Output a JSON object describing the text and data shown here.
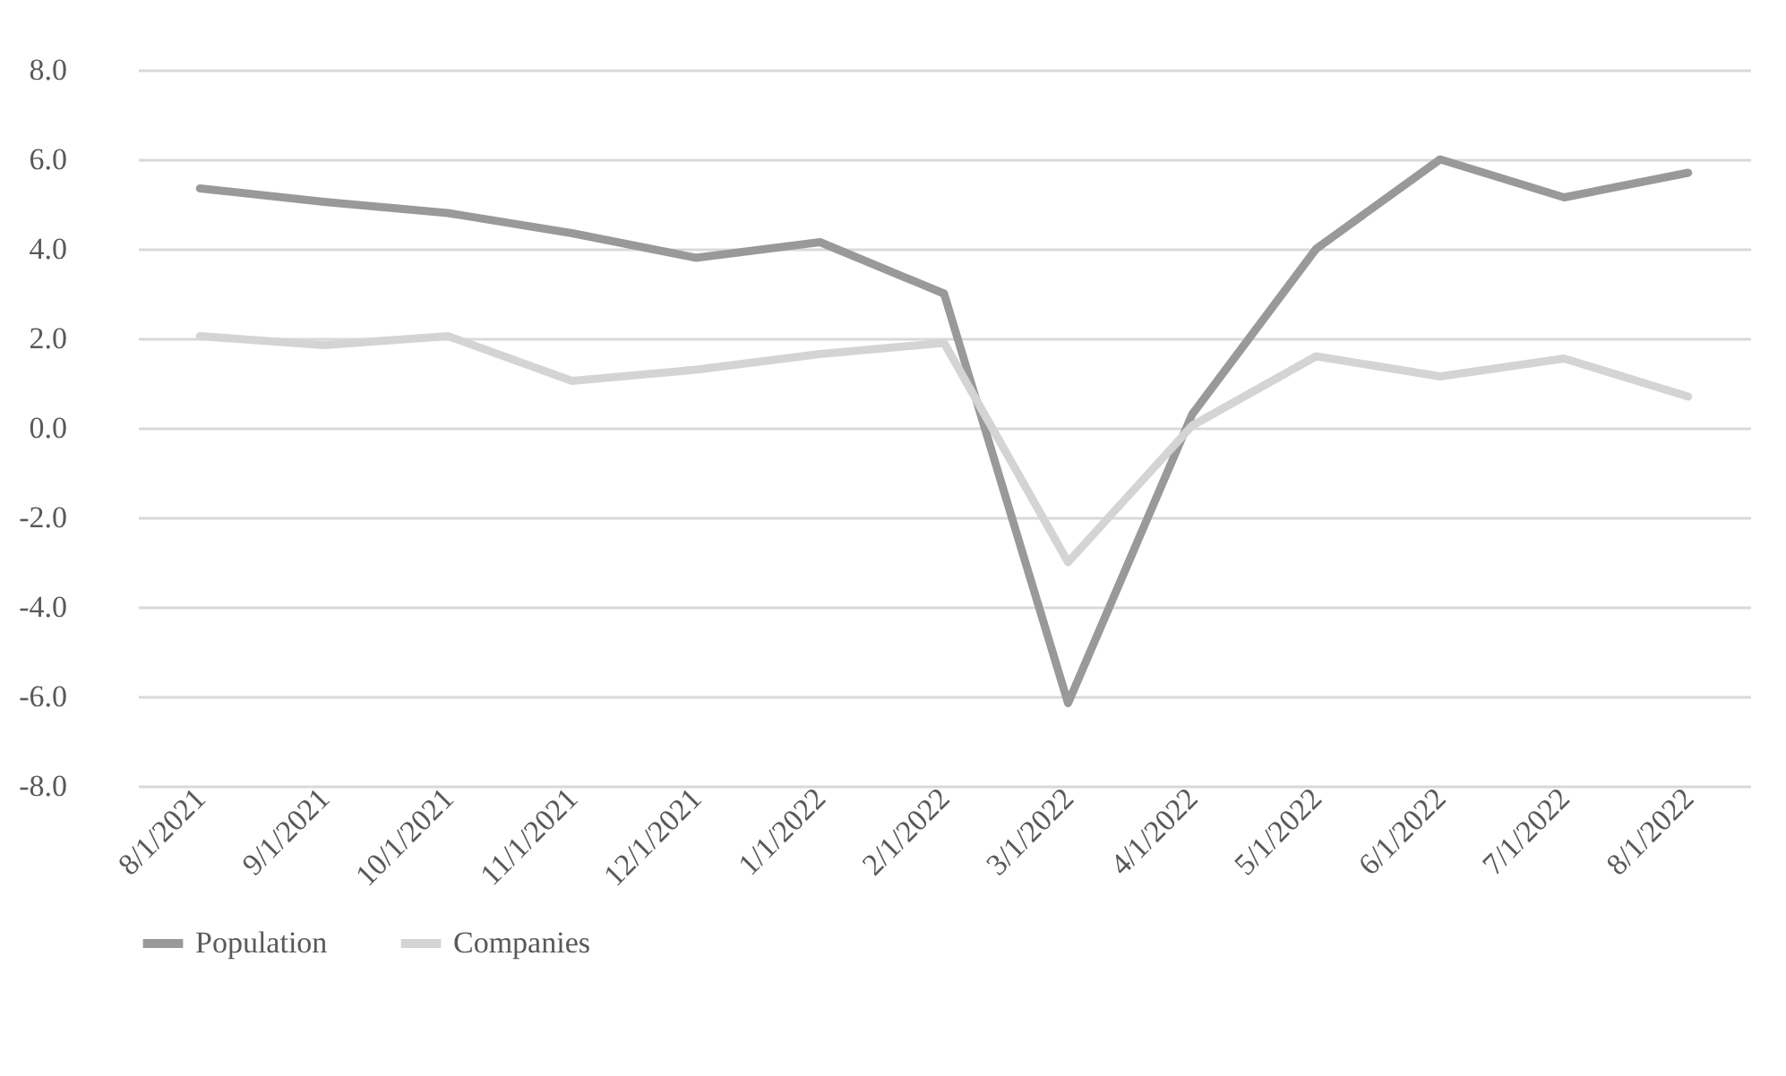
{
  "chart_data": {
    "type": "line",
    "categories": [
      "8/1/2021",
      "9/1/2021",
      "10/1/2021",
      "11/1/2021",
      "12/1/2021",
      "1/1/2022",
      "2/1/2022",
      "3/1/2022",
      "4/1/2022",
      "5/1/2022",
      "6/1/2022",
      "7/1/2022",
      "8/1/2022"
    ],
    "series": [
      {
        "name": "Population",
        "color": "#999999",
        "values": [
          5.35,
          5.05,
          4.8,
          4.35,
          3.8,
          4.15,
          3.0,
          -6.15,
          0.3,
          4.0,
          6.0,
          5.15,
          5.7
        ]
      },
      {
        "name": "Companies",
        "color": "#d4d4d4",
        "values": [
          2.05,
          1.85,
          2.05,
          1.05,
          1.3,
          1.65,
          1.9,
          -3.0,
          0.05,
          1.6,
          1.15,
          1.55,
          0.7
        ]
      }
    ],
    "ylim": [
      -8,
      8
    ],
    "yticks": [
      {
        "value": -8,
        "label": "-8.0"
      },
      {
        "value": -6,
        "label": "-6.0"
      },
      {
        "value": -4,
        "label": "-4.0"
      },
      {
        "value": -2,
        "label": "-2.0"
      },
      {
        "value": 0,
        "label": "0.0"
      },
      {
        "value": 2,
        "label": "2.0"
      },
      {
        "value": 4,
        "label": "4.0"
      },
      {
        "value": 6,
        "label": "6.0"
      },
      {
        "value": 8,
        "label": "8.0"
      }
    ],
    "grid": "y",
    "legend": "bottom",
    "marker": "none",
    "line_style": "solid"
  }
}
